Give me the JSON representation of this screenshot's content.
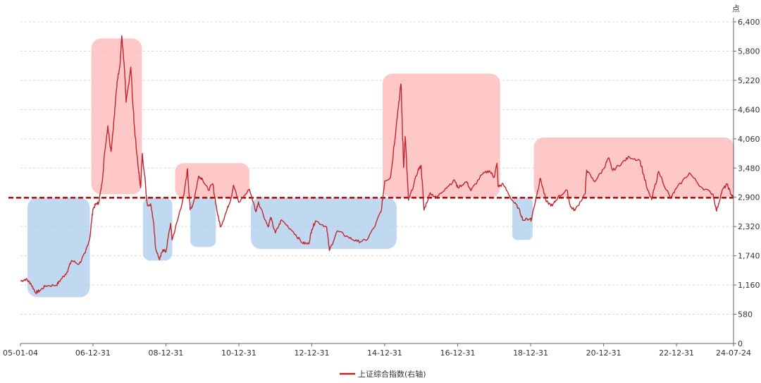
{
  "chart_data": {
    "type": "line",
    "title": "",
    "y_unit": "点",
    "y_axis_side": "right",
    "ylim": [
      0,
      6400
    ],
    "y_ticks": [
      "0",
      "580",
      "1,160",
      "1,740",
      "2,320",
      "2,900",
      "3,480",
      "4,060",
      "4,640",
      "5,220",
      "5,800",
      "6,400"
    ],
    "x_tick_labels": [
      "05-01-04",
      "06-12-31",
      "08-12-31",
      "10-12-31",
      "12-12-31",
      "14-12-31",
      "16-12-31",
      "18-12-31",
      "20-12-31",
      "22-12-31",
      "24-07-24"
    ],
    "xlim": [
      "2005-01-04",
      "2024-07-24"
    ],
    "grid": "horizontal dashed",
    "legend_position": "bottom-center",
    "reference_line": {
      "value": 2900,
      "color": "#c00000",
      "style": "dashed"
    },
    "series": [
      {
        "name": "上证综合指数(右轴)",
        "color": "#c0262d",
        "points": [
          [
            "2005-01-04",
            1243
          ],
          [
            "2005-03-01",
            1280
          ],
          [
            "2005-04-15",
            1200
          ],
          [
            "2005-06-06",
            1011
          ],
          [
            "2005-07-15",
            1050
          ],
          [
            "2005-09-15",
            1150
          ],
          [
            "2005-12-31",
            1161
          ],
          [
            "2006-02-15",
            1280
          ],
          [
            "2006-04-15",
            1420
          ],
          [
            "2006-05-31",
            1650
          ],
          [
            "2006-08-15",
            1580
          ],
          [
            "2006-10-15",
            1800
          ],
          [
            "2006-11-30",
            2100
          ],
          [
            "2006-12-31",
            2675
          ],
          [
            "2007-01-31",
            2780
          ],
          [
            "2007-02-27",
            2800
          ],
          [
            "2007-03-31",
            3180
          ],
          [
            "2007-04-30",
            3840
          ],
          [
            "2007-05-29",
            4330
          ],
          [
            "2007-06-30",
            3820
          ],
          [
            "2007-07-31",
            4470
          ],
          [
            "2007-08-31",
            5220
          ],
          [
            "2007-09-28",
            5550
          ],
          [
            "2007-10-16",
            6124
          ],
          [
            "2007-11-15",
            5350
          ],
          [
            "2007-11-28",
            4800
          ],
          [
            "2007-12-31",
            5260
          ],
          [
            "2008-01-14",
            5500
          ],
          [
            "2008-02-15",
            4400
          ],
          [
            "2008-03-31",
            3470
          ],
          [
            "2008-04-21",
            3100
          ],
          [
            "2008-05-09",
            3780
          ],
          [
            "2008-06-30",
            2740
          ],
          [
            "2008-07-31",
            2780
          ],
          [
            "2008-08-31",
            2400
          ],
          [
            "2008-09-18",
            1900
          ],
          [
            "2008-10-28",
            1664
          ],
          [
            "2008-11-30",
            1870
          ],
          [
            "2008-12-31",
            1821
          ],
          [
            "2009-02-16",
            2390
          ],
          [
            "2009-03-03",
            2060
          ],
          [
            "2009-04-30",
            2480
          ],
          [
            "2009-06-30",
            2960
          ],
          [
            "2009-08-04",
            3478
          ],
          [
            "2009-08-31",
            2660
          ],
          [
            "2009-09-30",
            2780
          ],
          [
            "2009-11-24",
            3330
          ],
          [
            "2009-12-31",
            3277
          ],
          [
            "2010-02-28",
            3050
          ],
          [
            "2010-04-14",
            3180
          ],
          [
            "2010-05-31",
            2590
          ],
          [
            "2010-07-02",
            2320
          ],
          [
            "2010-08-31",
            2640
          ],
          [
            "2010-10-15",
            2900
          ],
          [
            "2010-11-08",
            3150
          ],
          [
            "2010-12-31",
            2808
          ],
          [
            "2011-04-18",
            3067
          ],
          [
            "2011-06-20",
            2620
          ],
          [
            "2011-07-15",
            2820
          ],
          [
            "2011-10-21",
            2320
          ],
          [
            "2011-11-15",
            2510
          ],
          [
            "2011-12-31",
            2199
          ],
          [
            "2012-03-02",
            2460
          ],
          [
            "2012-06-30",
            2220
          ],
          [
            "2012-09-26",
            2004
          ],
          [
            "2012-11-30",
            1980
          ],
          [
            "2012-12-31",
            2269
          ],
          [
            "2013-02-06",
            2440
          ],
          [
            "2013-05-29",
            2320
          ],
          [
            "2013-06-25",
            1850
          ],
          [
            "2013-09-12",
            2240
          ],
          [
            "2013-12-31",
            2116
          ],
          [
            "2014-03-31",
            2030
          ],
          [
            "2014-06-30",
            2050
          ],
          [
            "2014-09-30",
            2360
          ],
          [
            "2014-11-30",
            2680
          ],
          [
            "2014-12-31",
            3235
          ],
          [
            "2015-02-28",
            3310
          ],
          [
            "2015-04-30",
            4440
          ],
          [
            "2015-06-12",
            5166
          ],
          [
            "2015-07-08",
            3500
          ],
          [
            "2015-07-24",
            4120
          ],
          [
            "2015-08-26",
            2850
          ],
          [
            "2015-09-30",
            3050
          ],
          [
            "2015-11-30",
            3450
          ],
          [
            "2015-12-31",
            3539
          ],
          [
            "2016-01-28",
            2656
          ],
          [
            "2016-03-31",
            3000
          ],
          [
            "2016-05-31",
            2900
          ],
          [
            "2016-08-31",
            3090
          ],
          [
            "2016-11-30",
            3250
          ],
          [
            "2016-12-31",
            3104
          ],
          [
            "2017-03-31",
            3220
          ],
          [
            "2017-05-11",
            3040
          ],
          [
            "2017-08-31",
            3360
          ],
          [
            "2017-11-13",
            3440
          ],
          [
            "2017-12-31",
            3307
          ],
          [
            "2018-01-29",
            3587
          ],
          [
            "2018-02-09",
            3120
          ],
          [
            "2018-03-31",
            3170
          ],
          [
            "2018-06-30",
            2850
          ],
          [
            "2018-08-31",
            2700
          ],
          [
            "2018-10-18",
            2450
          ],
          [
            "2018-12-31",
            2494
          ],
          [
            "2019-01-04",
            2440
          ],
          [
            "2019-02-28",
            2940
          ],
          [
            "2019-04-08",
            3288
          ],
          [
            "2019-06-06",
            2820
          ],
          [
            "2019-08-06",
            2740
          ],
          [
            "2019-09-30",
            2910
          ],
          [
            "2019-12-31",
            3050
          ],
          [
            "2020-02-03",
            2720
          ],
          [
            "2020-03-19",
            2650
          ],
          [
            "2020-06-30",
            2985
          ],
          [
            "2020-07-13",
            3450
          ],
          [
            "2020-09-30",
            3220
          ],
          [
            "2020-12-31",
            3473
          ],
          [
            "2021-02-18",
            3696
          ],
          [
            "2021-03-31",
            3440
          ],
          [
            "2021-06-30",
            3590
          ],
          [
            "2021-09-14",
            3715
          ],
          [
            "2021-12-31",
            3640
          ],
          [
            "2022-03-15",
            3060
          ],
          [
            "2022-04-26",
            2863
          ],
          [
            "2022-07-05",
            3424
          ],
          [
            "2022-10-31",
            2885
          ],
          [
            "2022-12-31",
            3089
          ],
          [
            "2023-05-09",
            3395
          ],
          [
            "2023-08-31",
            3120
          ],
          [
            "2023-12-31",
            2975
          ],
          [
            "2024-02-05",
            2635
          ],
          [
            "2024-03-31",
            3041
          ],
          [
            "2024-05-20",
            3171
          ],
          [
            "2024-06-30",
            2967
          ],
          [
            "2024-07-24",
            2901
          ]
        ]
      }
    ],
    "highlight_zones": [
      {
        "kind": "below",
        "color": "#a9cbea",
        "from": "2005-03-15",
        "to": "2006-11-30",
        "ymin": 920,
        "ymax": 2900
      },
      {
        "kind": "above",
        "color": "#ffb3b3",
        "from": "2006-12-15",
        "to": "2008-05-05",
        "ymin": 2970,
        "ymax": 6070
      },
      {
        "kind": "below",
        "color": "#a9cbea",
        "from": "2008-05-15",
        "to": "2009-03-05",
        "ymin": 1650,
        "ymax": 2900
      },
      {
        "kind": "above",
        "color": "#ffb3b3",
        "from": "2009-04-01",
        "to": "2011-04-15",
        "ymin": 2900,
        "ymax": 3590
      },
      {
        "kind": "below",
        "color": "#a9cbea",
        "from": "2009-09-01",
        "to": "2010-05-15",
        "ymin": 1920,
        "ymax": 2900
      },
      {
        "kind": "below",
        "color": "#a9cbea",
        "from": "2011-05-01",
        "to": "2015-04-30",
        "ymin": 1880,
        "ymax": 2900
      },
      {
        "kind": "above",
        "color": "#ffb3b3",
        "from": "2014-12-10",
        "to": "2018-03-01",
        "ymin": 2900,
        "ymax": 5370
      },
      {
        "kind": "below",
        "color": "#a9cbea",
        "from": "2018-07-01",
        "to": "2019-01-20",
        "ymin": 2060,
        "ymax": 2900
      },
      {
        "kind": "above",
        "color": "#ffb3b3",
        "from": "2019-02-01",
        "to": "2024-07-31",
        "ymin": 2900,
        "ymax": 4100
      }
    ]
  }
}
